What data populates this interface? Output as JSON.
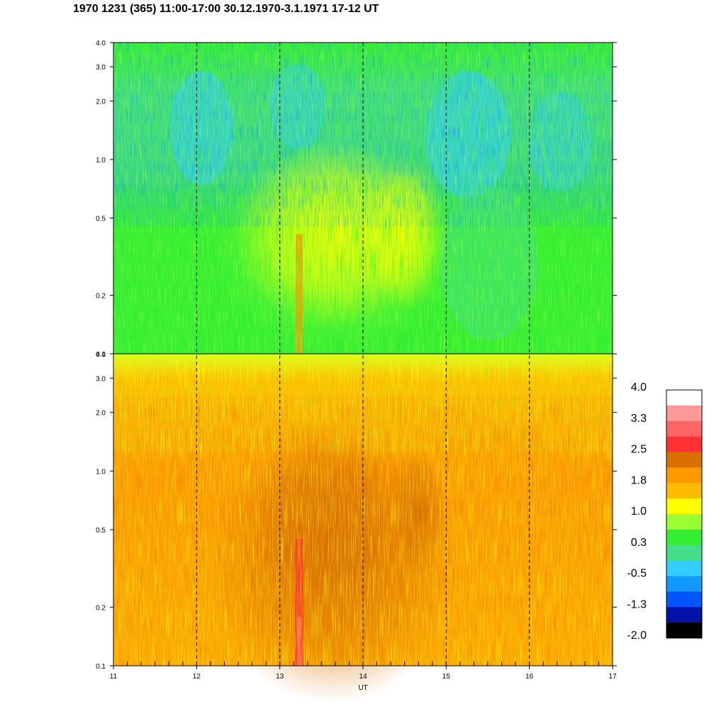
{
  "title": "1970 1231 (365) 11:00-17:00 30.12.1970-3.1.1971  17-12 UT",
  "chart_data": {
    "type": "heatmap",
    "title": "1970 1231 (365) 11:00-17:00 30.12.1970-3.1.1971  17-12 UT",
    "xlabel": "UT",
    "xlim": [
      11,
      17
    ],
    "x_ticks": [
      "11",
      "12",
      "13",
      "14",
      "15",
      "16",
      "17"
    ],
    "dashed_grid_x": [
      12,
      13,
      14,
      15,
      16
    ],
    "panels": [
      {
        "name": "",
        "yscale": "log",
        "ylim": [
          0.1,
          4.0
        ],
        "y_ticks": [
          "0.1",
          "0.2",
          "0.5",
          "1.0",
          "2.0",
          "3.0",
          "4.0"
        ],
        "y_tick_values": [
          0.1,
          0.2,
          0.5,
          1.0,
          2.0,
          3.0,
          4.0
        ],
        "dominant_levels": "green/cyan/blue at higher frequencies; yellow/light-orange enhancement 12.5-14.9 UT below 1.0; orange column near 13.2 UT"
      },
      {
        "name": "",
        "yscale": "log",
        "ylim": [
          0.1,
          4.0
        ],
        "y_ticks": [
          "0.1",
          "0.2",
          "0.5",
          "1.0",
          "2.0",
          "3.0",
          "4.0"
        ],
        "y_tick_values": [
          0.1,
          0.2,
          0.5,
          1.0,
          2.0,
          3.0,
          4.0
        ],
        "dominant_levels": "orange/amber overall; dark-orange enhancement 12.5-14.9 UT; red/pink column near 13.2 UT; yellow-green at top"
      }
    ],
    "colorbar": {
      "tick_labels": [
        "4.0",
        "3.3",
        "2.5",
        "1.8",
        "1.0",
        "0.3",
        "-0.5",
        "-1.3",
        "-2.0"
      ],
      "colors": [
        "#ffffff",
        "#ff9999",
        "#ff6666",
        "#ff3333",
        "#d97000",
        "#ff9900",
        "#ffbb00",
        "#ffff00",
        "#99ff33",
        "#33ee33",
        "#44dd88",
        "#33ccff",
        "#1199ff",
        "#0055ff",
        "#0011aa",
        "#000000"
      ]
    }
  }
}
